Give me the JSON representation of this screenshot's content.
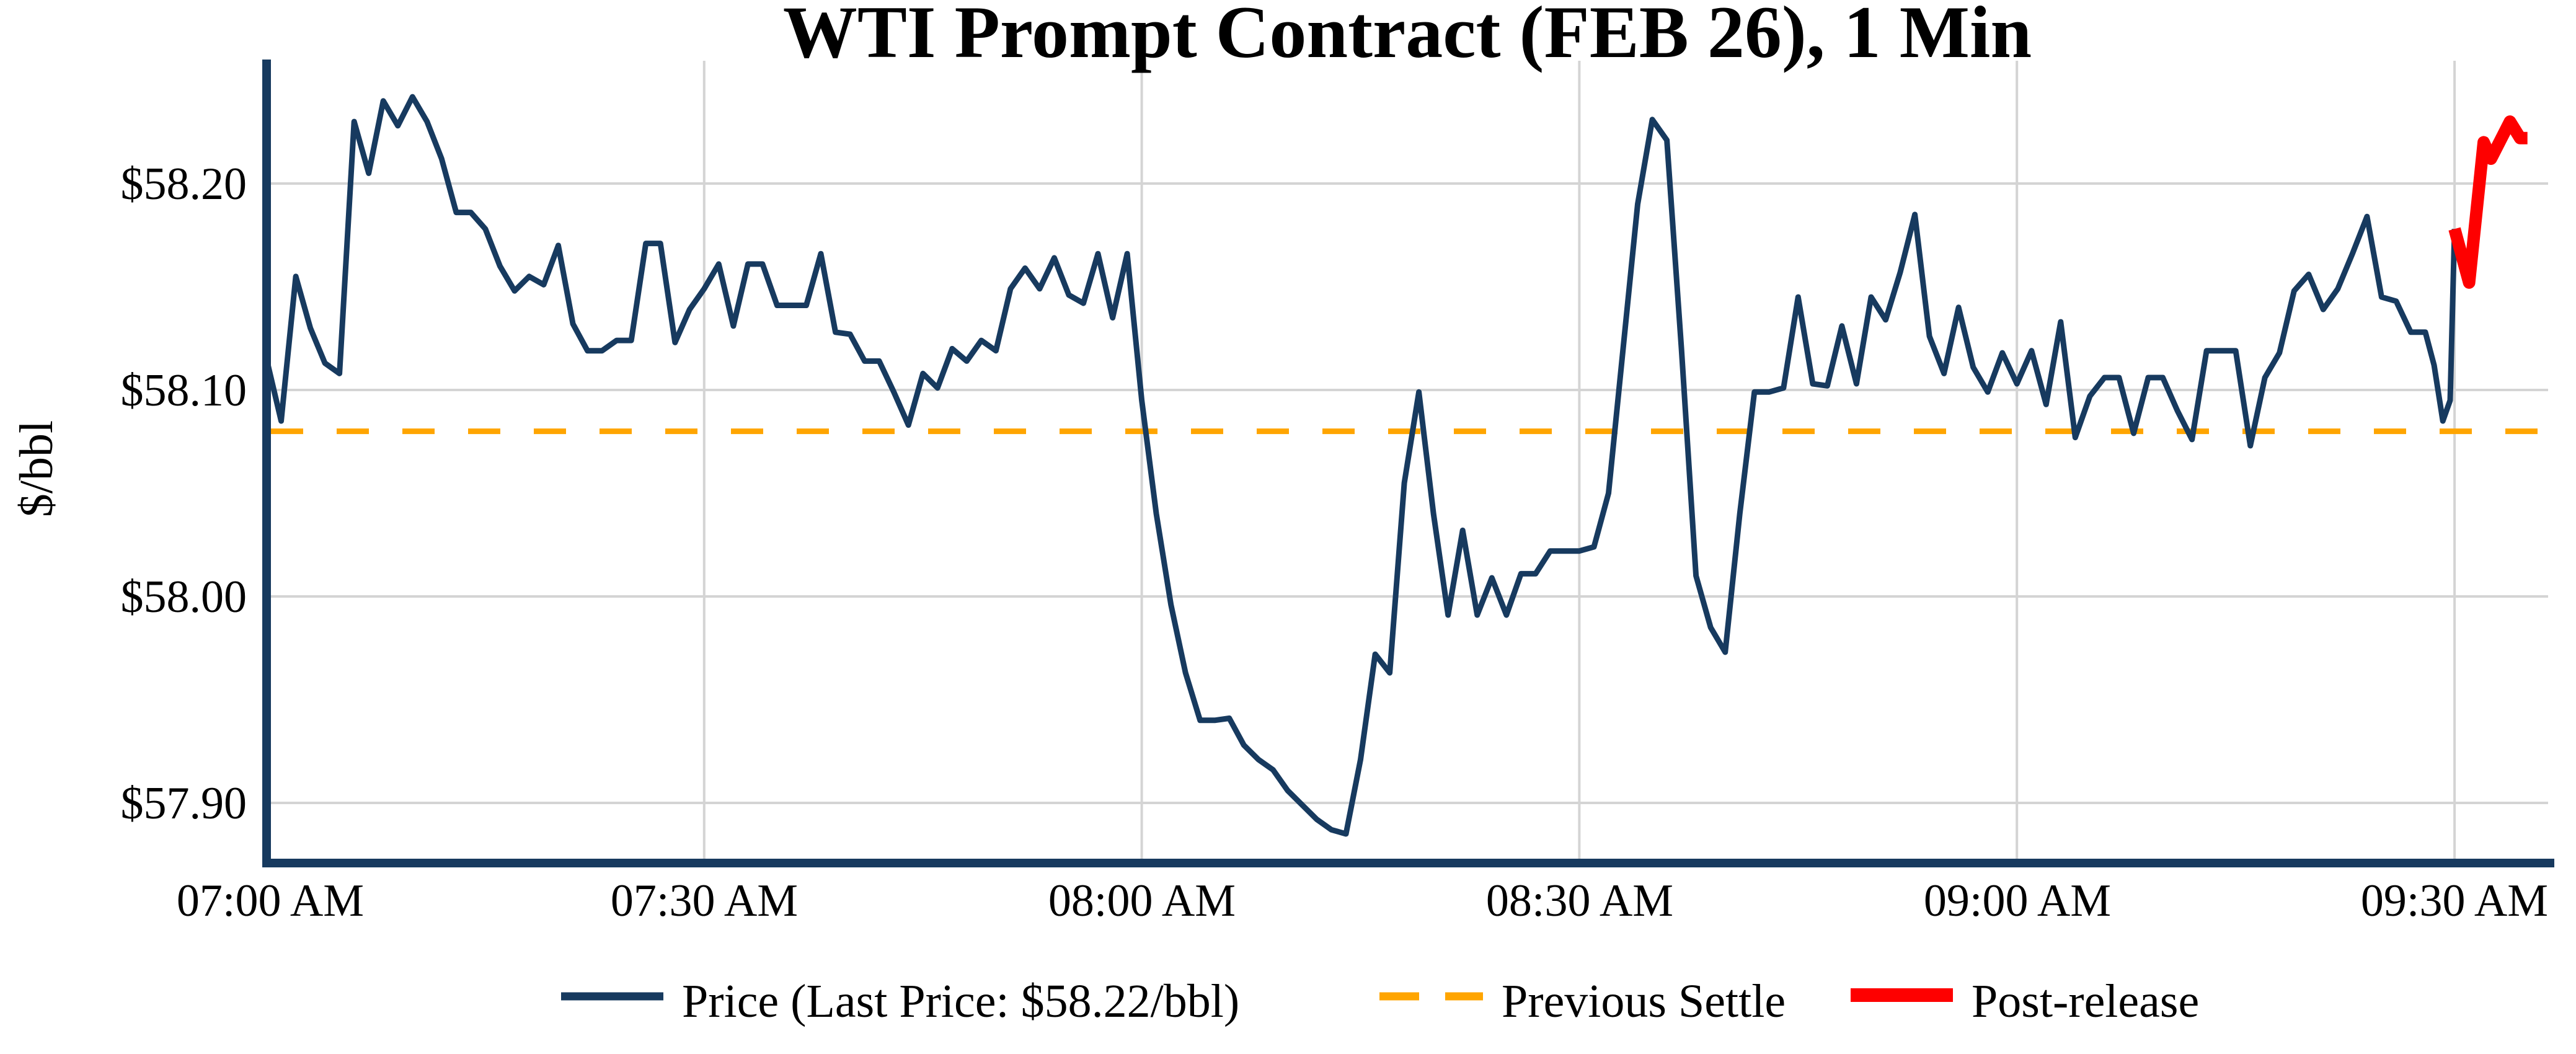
{
  "colors": {
    "line": "#173a5f",
    "settle": "#ffa500",
    "post": "#fe0000",
    "grid": "#d4d4d4",
    "spine": "#173a5f",
    "text": "#000000",
    "background": "#ffffff"
  },
  "chart_data": {
    "type": "line",
    "title": "WTI Prompt Contract (FEB 26), 1 Min",
    "ylabel": "$/bbl",
    "grid": true,
    "legend_position": "bottom-center",
    "ylim": [
      57.87,
      58.26
    ],
    "x_axis_unit": "minutes after 07:00 AM",
    "xlim_minutes": [
      0,
      156.5
    ],
    "previous_settle": 58.08,
    "last_price": 58.22,
    "y_ticks": [
      {
        "label": "$58.20",
        "value": 58.2
      },
      {
        "label": "$58.10",
        "value": 58.1
      },
      {
        "label": "$58.00",
        "value": 58.0
      },
      {
        "label": "$57.90",
        "value": 57.9
      }
    ],
    "x_ticks": [
      {
        "label": "07:00 AM",
        "minute": 0
      },
      {
        "label": "07:30 AM",
        "minute": 30
      },
      {
        "label": "08:00 AM",
        "minute": 60
      },
      {
        "label": "08:30 AM",
        "minute": 90
      },
      {
        "label": "09:00 AM",
        "minute": 120
      },
      {
        "label": "09:30 AM",
        "minute": 150
      }
    ],
    "legend": [
      {
        "label": "Price (Last Price: $58.22/bbl)",
        "style": "solid",
        "color": "#173a5f"
      },
      {
        "label": "Previous Settle",
        "style": "dashed",
        "color": "#ffa500"
      },
      {
        "label": "Post-release",
        "style": "solid-thick",
        "color": "#fe0000"
      }
    ],
    "series": [
      {
        "name": "price",
        "color": "#173a5f",
        "width": 9,
        "x_minutes": [
          0,
          1,
          2,
          3,
          4,
          5,
          6,
          7,
          8,
          9,
          10,
          11,
          12,
          13,
          14,
          15,
          16,
          17,
          18,
          19,
          20,
          21,
          22,
          23,
          24,
          25,
          26,
          27,
          28,
          29,
          30,
          31,
          32,
          33,
          34,
          35,
          36,
          37,
          38,
          39,
          40,
          41,
          42,
          43,
          44,
          45,
          46,
          47,
          48,
          49,
          50,
          51,
          52,
          53,
          54,
          55,
          56,
          57,
          58,
          59,
          60,
          61,
          62,
          63,
          64,
          65,
          66,
          67,
          68,
          69,
          70,
          71,
          72,
          73,
          74,
          75,
          76,
          77,
          78,
          79,
          80,
          81,
          82,
          83,
          84,
          85,
          86,
          87,
          88,
          89,
          90,
          91,
          92,
          93,
          94,
          95,
          96,
          97,
          98,
          99,
          100,
          101,
          102,
          103,
          104,
          105,
          106,
          107,
          108,
          109,
          110,
          111,
          112,
          113,
          114,
          115,
          116,
          117,
          118,
          119,
          120,
          121,
          122,
          123,
          124,
          125,
          126,
          127,
          128,
          129,
          130,
          131,
          132,
          133,
          134,
          135,
          136,
          137,
          138,
          139,
          140,
          141,
          142,
          143,
          144,
          145,
          146,
          147,
          148,
          148.6,
          149.2,
          149.7,
          150
        ],
        "values": [
          58.115,
          58.085,
          58.155,
          58.13,
          58.113,
          58.108,
          58.23,
          58.205,
          58.24,
          58.228,
          58.242,
          58.23,
          58.212,
          58.186,
          58.186,
          58.178,
          58.16,
          58.148,
          58.155,
          58.151,
          58.17,
          58.132,
          58.119,
          58.119,
          58.124,
          58.124,
          58.171,
          58.171,
          58.123,
          58.139,
          58.149,
          58.161,
          58.131,
          58.161,
          58.161,
          58.141,
          58.141,
          58.141,
          58.166,
          58.128,
          58.127,
          58.114,
          58.114,
          58.099,
          58.083,
          58.108,
          58.101,
          58.12,
          58.114,
          58.124,
          58.119,
          58.149,
          58.159,
          58.149,
          58.164,
          58.146,
          58.142,
          58.166,
          58.135,
          58.166,
          58.095,
          58.04,
          57.996,
          57.963,
          57.94,
          57.94,
          57.941,
          57.928,
          57.921,
          57.916,
          57.906,
          57.899,
          57.892,
          57.887,
          57.885,
          57.921,
          57.972,
          57.963,
          58.055,
          58.099,
          58.04,
          57.991,
          58.032,
          57.991,
          58.009,
          57.991,
          58.011,
          58.011,
          58.022,
          58.022,
          58.022,
          58.024,
          58.05,
          58.12,
          58.19,
          58.231,
          58.221,
          58.12,
          58.01,
          57.985,
          57.973,
          58.04,
          58.099,
          58.099,
          58.101,
          58.145,
          58.103,
          58.102,
          58.131,
          58.103,
          58.145,
          58.134,
          58.157,
          58.185,
          58.126,
          58.108,
          58.14,
          58.111,
          58.099,
          58.118,
          58.103,
          58.119,
          58.093,
          58.133,
          58.077,
          58.097,
          58.106,
          58.106,
          58.079,
          58.106,
          58.106,
          58.09,
          58.076,
          58.119,
          58.119,
          58.119,
          58.073,
          58.106,
          58.118,
          58.148,
          58.156,
          58.139,
          58.149,
          58.166,
          58.184,
          58.145,
          58.143,
          58.128,
          58.128,
          58.112,
          58.085,
          58.095,
          58.178
        ]
      },
      {
        "name": "post_release",
        "color": "#fe0000",
        "width": 20,
        "x_minutes": [
          150,
          151,
          152,
          152.5,
          153.8,
          154.5,
          155
        ],
        "values": [
          58.178,
          58.152,
          58.22,
          58.212,
          58.23,
          58.222,
          58.222
        ]
      }
    ]
  }
}
